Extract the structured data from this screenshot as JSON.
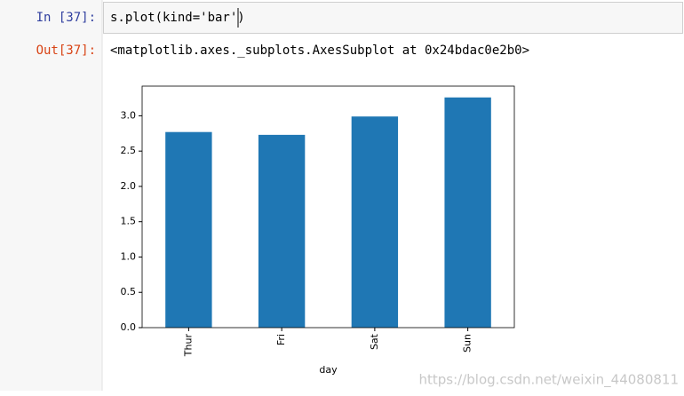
{
  "input": {
    "prompt": "In  [37]:",
    "code": "s.plot(kind='bar')"
  },
  "output": {
    "prompt": "Out[37]:",
    "text": "<matplotlib.axes._subplots.AxesSubplot at 0x24bdac0e2b0>"
  },
  "chart_data": {
    "type": "bar",
    "xlabel": "day",
    "categories": [
      "Thur",
      "Fri",
      "Sat",
      "Sun"
    ],
    "values": [
      2.77,
      2.73,
      2.99,
      3.26
    ],
    "color": "#1f77b4",
    "ylim": [
      0,
      3.42
    ],
    "yticks": [
      {
        "value": 0,
        "label": "0.0"
      },
      0.5,
      {
        "value": 1,
        "label": "1.0"
      },
      1.5,
      {
        "value": 2,
        "label": "2.0"
      },
      2.5,
      {
        "value": 3,
        "label": "3.0"
      }
    ],
    "grid": false
  },
  "watermark": "https://blog.csdn.net/weixin_44080811"
}
